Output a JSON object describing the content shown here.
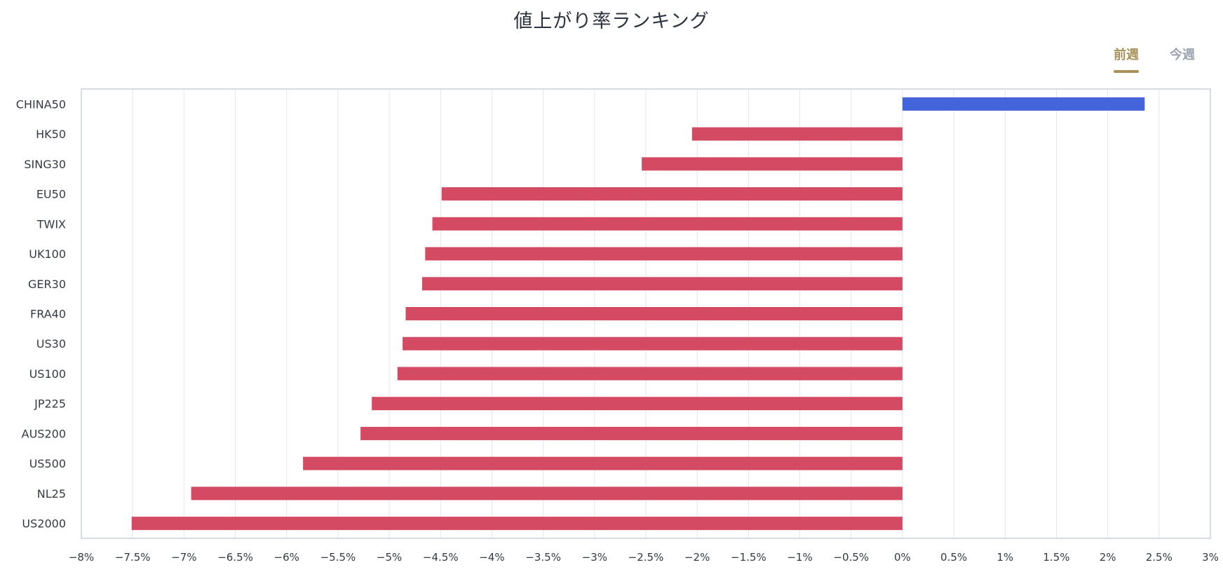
{
  "header": {
    "title": "値上がり率ランキング",
    "tabs": [
      {
        "label": "前週",
        "active": true
      },
      {
        "label": "今週",
        "active": false
      }
    ]
  },
  "colors": {
    "positive": "#4464db",
    "negative": "#d34a62",
    "accent": "#a8925a",
    "grid": "#e1e6ee",
    "frame": "#c9d1dc"
  },
  "chart_data": {
    "type": "bar",
    "orientation": "horizontal",
    "title": "値上がり率ランキング",
    "categories": [
      "CHINA50",
      "HK50",
      "SING30",
      "EU50",
      "TWIX",
      "UK100",
      "GER30",
      "FRA40",
      "US30",
      "US100",
      "JP225",
      "AUS200",
      "US500",
      "NL25",
      "US2000"
    ],
    "values": [
      2.36,
      -2.05,
      -2.54,
      -4.49,
      -4.58,
      -4.65,
      -4.68,
      -4.84,
      -4.87,
      -4.92,
      -5.17,
      -5.28,
      -5.84,
      -6.93,
      -7.51
    ],
    "xlim": [
      -8,
      3
    ],
    "xticks": [
      -8,
      -7.5,
      -7,
      -6.5,
      -6,
      -5.5,
      -5,
      -4.5,
      -4,
      -3.5,
      -3,
      -2.5,
      -2,
      -1.5,
      -1,
      -0.5,
      0,
      0.5,
      1,
      1.5,
      2,
      2.5,
      3
    ],
    "xtick_labels": [
      "−8%",
      "−7.5%",
      "−7%",
      "−6.5%",
      "−6%",
      "−5.5%",
      "−5%",
      "−4.5%",
      "−4%",
      "−3.5%",
      "−3%",
      "−2.5%",
      "−2%",
      "−1.5%",
      "−1%",
      "−0.5%",
      "0%",
      "0.5%",
      "1%",
      "1.5%",
      "2%",
      "2.5%",
      "3%"
    ],
    "grid": true,
    "xlabel": "",
    "ylabel": ""
  }
}
